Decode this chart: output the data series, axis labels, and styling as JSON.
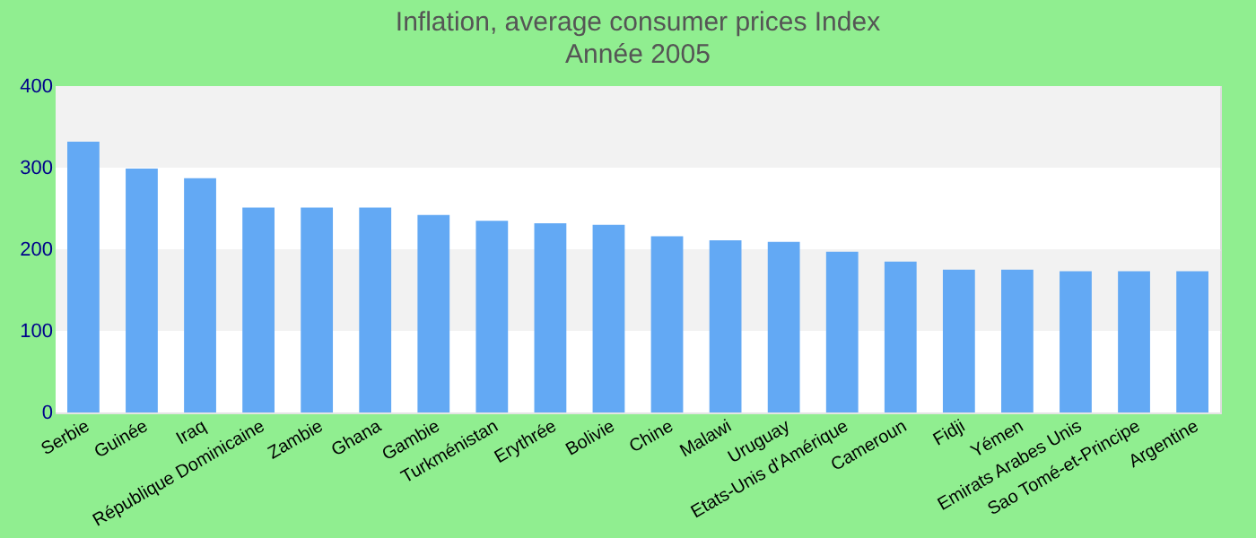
{
  "chart_data": {
    "type": "bar",
    "title": "Inflation, average consumer prices  Index",
    "subtitle": "Année 2005",
    "categories": [
      "Serbie",
      "Guinée",
      "Iraq",
      "République Dominicaine",
      "Zambie",
      "Ghana",
      "Gambie",
      "Turkménistan",
      "Erythrée",
      "Bolivie",
      "Chine",
      "Malawi",
      "Uruguay",
      "Etats-Unis d'Amérique",
      "Cameroun",
      "Fidji",
      "Yémen",
      "Emirats Arabes Unis",
      "Sao Tomé-et-Principe",
      "Argentine"
    ],
    "values": [
      332,
      299,
      287,
      251,
      251,
      251,
      242,
      235,
      232,
      230,
      216,
      211,
      209,
      197,
      185,
      175,
      175,
      173,
      173,
      173
    ],
    "color": "#63a9f4",
    "ylim": [
      0,
      400
    ],
    "yticks": [
      0,
      100,
      200,
      300,
      400
    ],
    "grid": "y"
  }
}
